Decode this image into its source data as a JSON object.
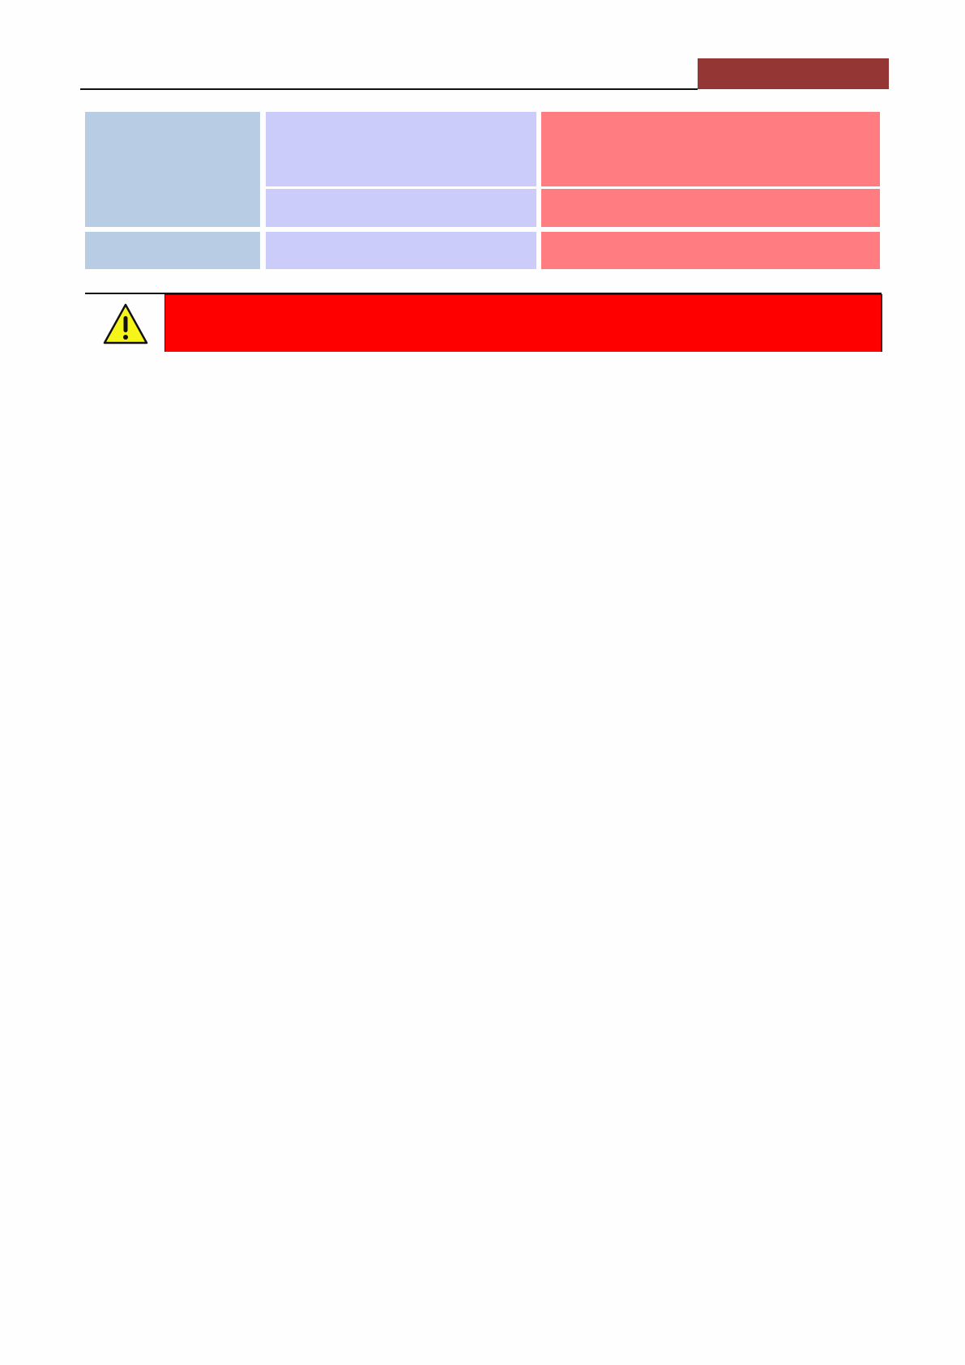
{
  "header": {
    "banner_color": "#943634",
    "rule_color": "#111111"
  },
  "table": {
    "column_colors": [
      "#b8cce4",
      "#ccccfa",
      "#ff7c80"
    ],
    "rows": [
      {
        "cells": [
          "",
          "",
          ""
        ]
      },
      {
        "cells": [
          "",
          ""
        ]
      },
      {
        "cells": [
          "",
          "",
          ""
        ]
      }
    ]
  },
  "warning": {
    "icon": "warning-triangle-icon",
    "box_color": "#ff0000",
    "text": ""
  }
}
